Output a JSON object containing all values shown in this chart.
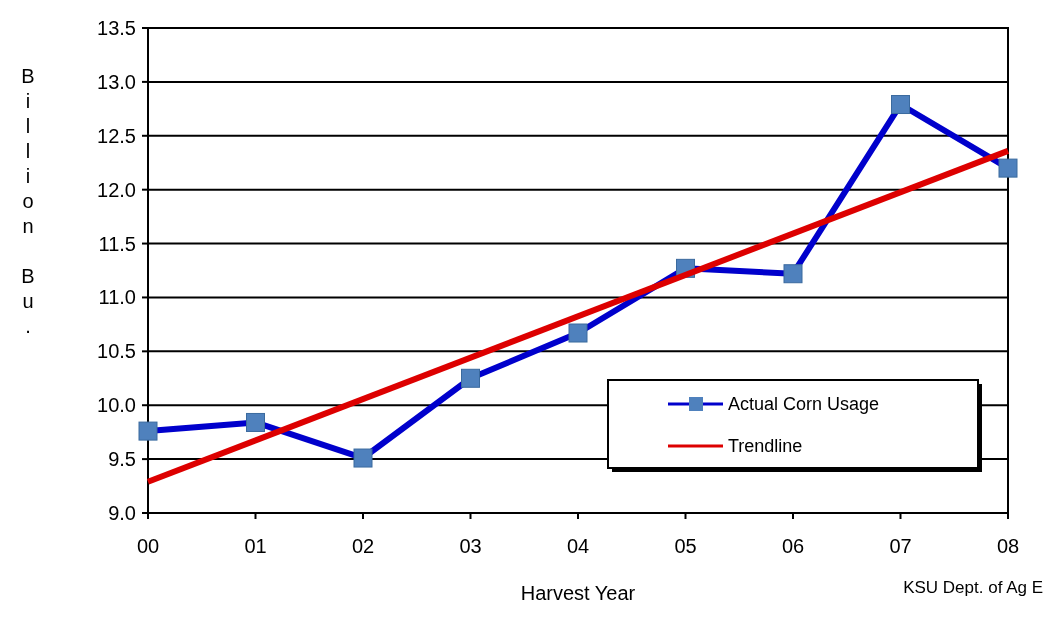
{
  "chart_data": {
    "type": "line",
    "xlabel": "Harvest Year",
    "ylabel": "Billion Bu.",
    "categories": [
      "00",
      "01",
      "02",
      "03",
      "04",
      "05",
      "06",
      "07",
      "08"
    ],
    "series": [
      {
        "name": "Actual Corn Usage",
        "color": "#0000cc",
        "marker": "square",
        "values": [
          9.76,
          9.84,
          9.51,
          10.25,
          10.67,
          11.27,
          11.22,
          12.79,
          12.2
        ]
      },
      {
        "name": "Trendline",
        "color": "#dd0000",
        "marker": "none",
        "x": [
          "00",
          "08"
        ],
        "values": [
          9.29,
          12.36
        ]
      }
    ],
    "ylim": [
      9,
      13.5
    ],
    "yticks": [
      {
        "value": 9,
        "label": "9.0"
      },
      9.5,
      {
        "value": 10,
        "label": "10.0"
      },
      10.5,
      {
        "value": 11,
        "label": "11.0"
      },
      11.5,
      {
        "value": 12,
        "label": "12.0"
      },
      12.5,
      {
        "value": 13,
        "label": "13.0"
      },
      13.5
    ],
    "grid": "y",
    "legend": "bottom right",
    "line_style": "solid",
    "annotations": [
      "KSU Dept. of Ag E"
    ]
  }
}
